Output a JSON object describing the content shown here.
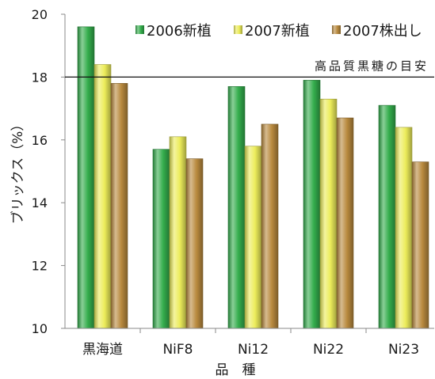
{
  "chart_data": {
    "type": "bar",
    "categories": [
      "黒海道",
      "NiF8",
      "Ni12",
      "Ni22",
      "Ni23"
    ],
    "series": [
      {
        "name": "2006新植",
        "color": "#34ad4c",
        "values": [
          19.6,
          15.7,
          17.7,
          17.9,
          17.1
        ]
      },
      {
        "name": "2007新植",
        "color": "#ecec5a",
        "values": [
          18.4,
          16.1,
          15.8,
          17.3,
          16.4
        ]
      },
      {
        "name": "2007株出し",
        "color": "#b98a3e",
        "values": [
          17.8,
          15.4,
          16.5,
          16.7,
          15.3
        ]
      }
    ],
    "xlabel": "品　種",
    "ylabel": "ブリックス（%）",
    "ylim": [
      10,
      20
    ],
    "yticks": [
      10,
      12,
      14,
      16,
      18,
      20
    ],
    "reference_line": {
      "value": 18,
      "label": "高品質黒糖の目安"
    },
    "grid": false,
    "legend_position": "top-right"
  }
}
